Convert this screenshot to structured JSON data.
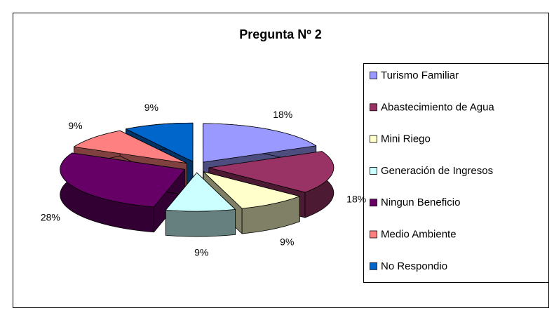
{
  "chart_data": {
    "type": "pie3d",
    "title": "Pregunta Nº 2",
    "categories": [
      "Turismo Familiar",
      "Abastecimiento de Agua",
      "Mini Riego",
      "Generación de Ingresos",
      "Ningun Beneficio",
      "Medio Ambiente",
      "No Respondio"
    ],
    "values": [
      18,
      18,
      9,
      9,
      28,
      9,
      9
    ],
    "value_labels": [
      "18%",
      "18%",
      "9%",
      "9%",
      "28%",
      "9%",
      "9%"
    ],
    "colors": [
      "#9999ff",
      "#993366",
      "#ffffcc",
      "#ccffff",
      "#660066",
      "#ff8080",
      "#0066cc"
    ],
    "legend": "right"
  }
}
